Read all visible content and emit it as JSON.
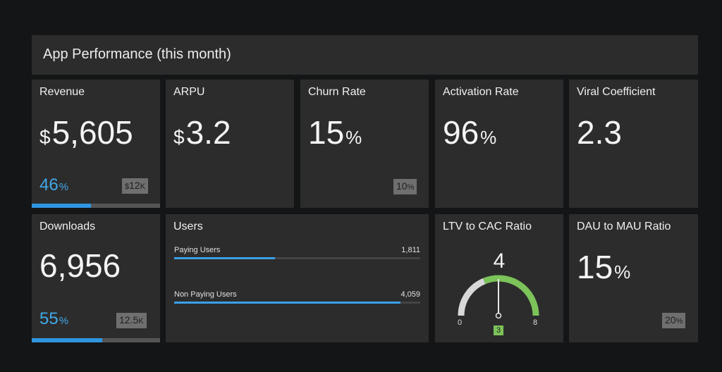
{
  "header": {
    "title": "App Performance (this month)"
  },
  "tiles": {
    "revenue": {
      "label": "Revenue",
      "currency": "$",
      "value": "5,605",
      "pct": "46",
      "pct_unit": "%",
      "target_cur": "$",
      "target": "12",
      "target_unit": "K",
      "progress": 0.46
    },
    "arpu": {
      "label": "ARPU",
      "currency": "$",
      "value": "3.2"
    },
    "churn": {
      "label": "Churn Rate",
      "value": "15",
      "unit": "%",
      "target": "10",
      "target_unit": "%"
    },
    "activation": {
      "label": "Activation Rate",
      "value": "96",
      "unit": "%"
    },
    "viral": {
      "label": "Viral Coefficient",
      "value": "2.3"
    },
    "downloads": {
      "label": "Downloads",
      "value": "6,956",
      "pct": "55",
      "pct_unit": "%",
      "target": "12.5",
      "target_unit": "K",
      "progress": 0.55
    },
    "users": {
      "label": "Users",
      "rows": [
        {
          "label": "Paying Users",
          "value": "1,811",
          "fraction": 0.41
        },
        {
          "label": "Non Paying Users",
          "value": "4,059",
          "fraction": 0.92
        }
      ]
    },
    "ltv": {
      "label": "LTV to CAC Ratio",
      "value": "4",
      "min": "0",
      "max": "8",
      "target": "3"
    },
    "dau": {
      "label": "DAU to MAU Ratio",
      "value": "15",
      "unit": "%",
      "target": "20",
      "target_unit": "%"
    }
  },
  "colors": {
    "accent": "#41a8e8",
    "gauge_green": "#7cc35a",
    "gauge_gray": "#d8d8d8",
    "tile_bg": "#2c2c2c"
  }
}
